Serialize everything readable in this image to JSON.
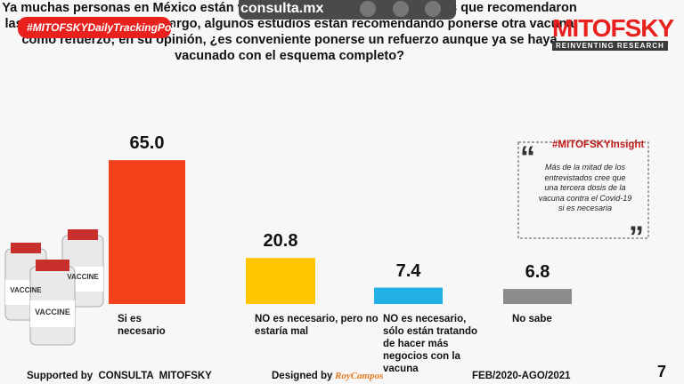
{
  "header": {
    "hashtag": "#MITOFSKYDailyTrackingPoll",
    "site": "consulta.mx",
    "brand": "MITOFSKY",
    "tagline": "REINVENTING RESEARCH"
  },
  "chart_data": {
    "type": "bar",
    "title": "Ya muchas personas en México están vacunadas con las dosis completas que recomendaron las farmacéuticas, sin embargo, algunos estudios están recomendando ponerse otra vacuna como refuerzo; en su opinión, ¿es conveniente ponerse un refuerzo aunque ya se haya vacunado con el esquema completo?",
    "categories": [
      "Si es necesario",
      "NO es necesario, pero no estaría mal",
      "NO es necesario, sólo están tratando de hacer más negocios con la vacuna",
      "No sabe"
    ],
    "values": [
      65.0,
      20.8,
      7.4,
      6.8
    ],
    "value_labels": [
      "65.0",
      "20.8",
      "7.4",
      "6.8"
    ],
    "colors": [
      "#f4411c",
      "#ffc600",
      "#22b0e6",
      "#8c8c8c"
    ]
  },
  "insight": {
    "title": "#MITOFSKYInsight",
    "text": "Más de  la mitad de los entrevistados cree que una tercera dosis de la vacuna contra el Covid-19 si es necesaria"
  },
  "illustration": {
    "label": "VACCINE"
  },
  "footer": {
    "supported": "Supported by  CONSULTA  MITOFSKY",
    "designed": "Designed by",
    "designer": "RoyCampos",
    "period": "FEB/2020-AGO/2021",
    "page": "7"
  }
}
